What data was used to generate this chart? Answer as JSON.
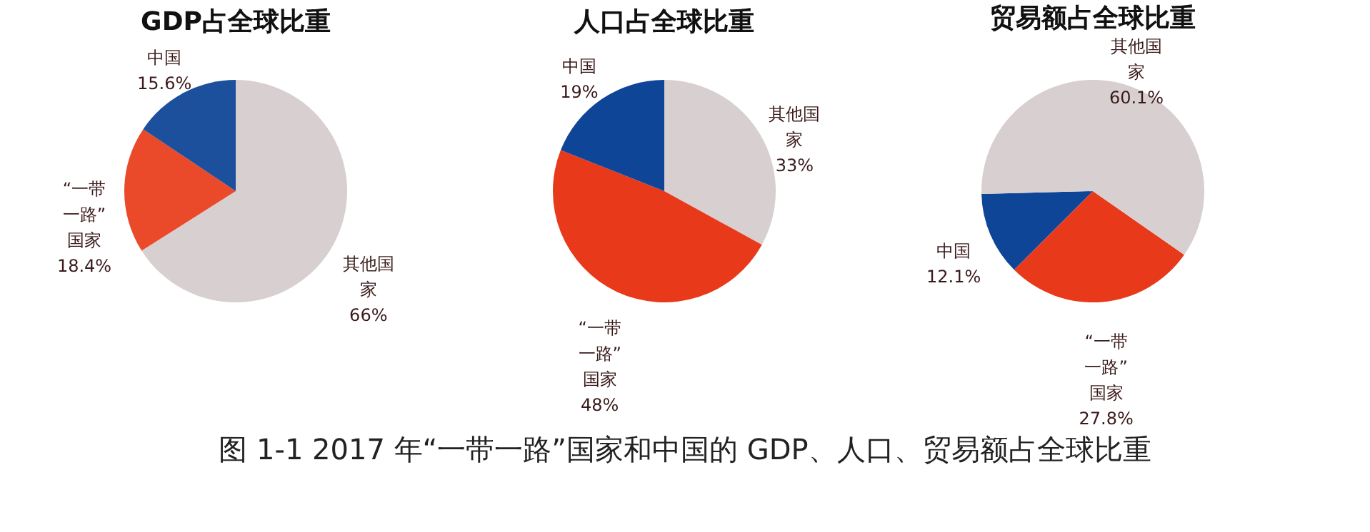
{
  "chart_data": [
    {
      "type": "pie",
      "title": "GDP占全球比重",
      "categories": [
        "其他国家",
        "“一带一路”国家",
        "中国"
      ],
      "values": [
        66,
        18.4,
        15.6
      ],
      "value_labels": [
        "66%",
        "18.4%",
        "15.6%"
      ],
      "colors": [
        "#d8cfd0",
        "#ea4a2a",
        "#1c4f9c"
      ]
    },
    {
      "type": "pie",
      "title": "人口占全球比重",
      "categories": [
        "其他国家",
        "“一带一路”国家",
        "中国"
      ],
      "values": [
        33,
        48,
        19
      ],
      "value_labels": [
        "33%",
        "48%",
        "19%"
      ],
      "colors": [
        "#d8cfd0",
        "#e8391a",
        "#0f4597"
      ],
      "annotations": [
        "图 1-1  2017 年“一带一路”国家和中国的 GDP、人口、贸易额占全球比重"
      ]
    },
    {
      "type": "pie",
      "title": "贸易额占全球比重",
      "categories": [
        "“一带一路”国家",
        "中国",
        "其他国家"
      ],
      "values": [
        27.8,
        12.1,
        60.1
      ],
      "value_labels": [
        "27.8%",
        "12.1%",
        "60.1%"
      ],
      "colors": [
        "#e8391a",
        "#0f4597",
        "#d8cfd0"
      ]
    }
  ]
}
